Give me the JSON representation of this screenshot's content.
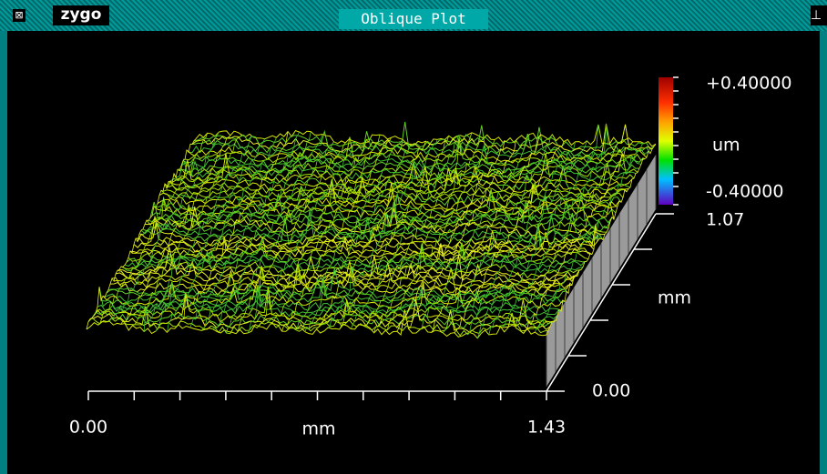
{
  "window": {
    "logo": "zygo",
    "title": "Oblique Plot"
  },
  "plot": {
    "colorbar": {
      "max": "+0.40000",
      "unit": "um",
      "min": "-0.40000"
    },
    "y_axis": {
      "max": "1.07",
      "unit": "mm",
      "min": "0.00"
    },
    "x_axis": {
      "min": "0.00",
      "unit": "mm",
      "max": "1.43"
    }
  }
}
